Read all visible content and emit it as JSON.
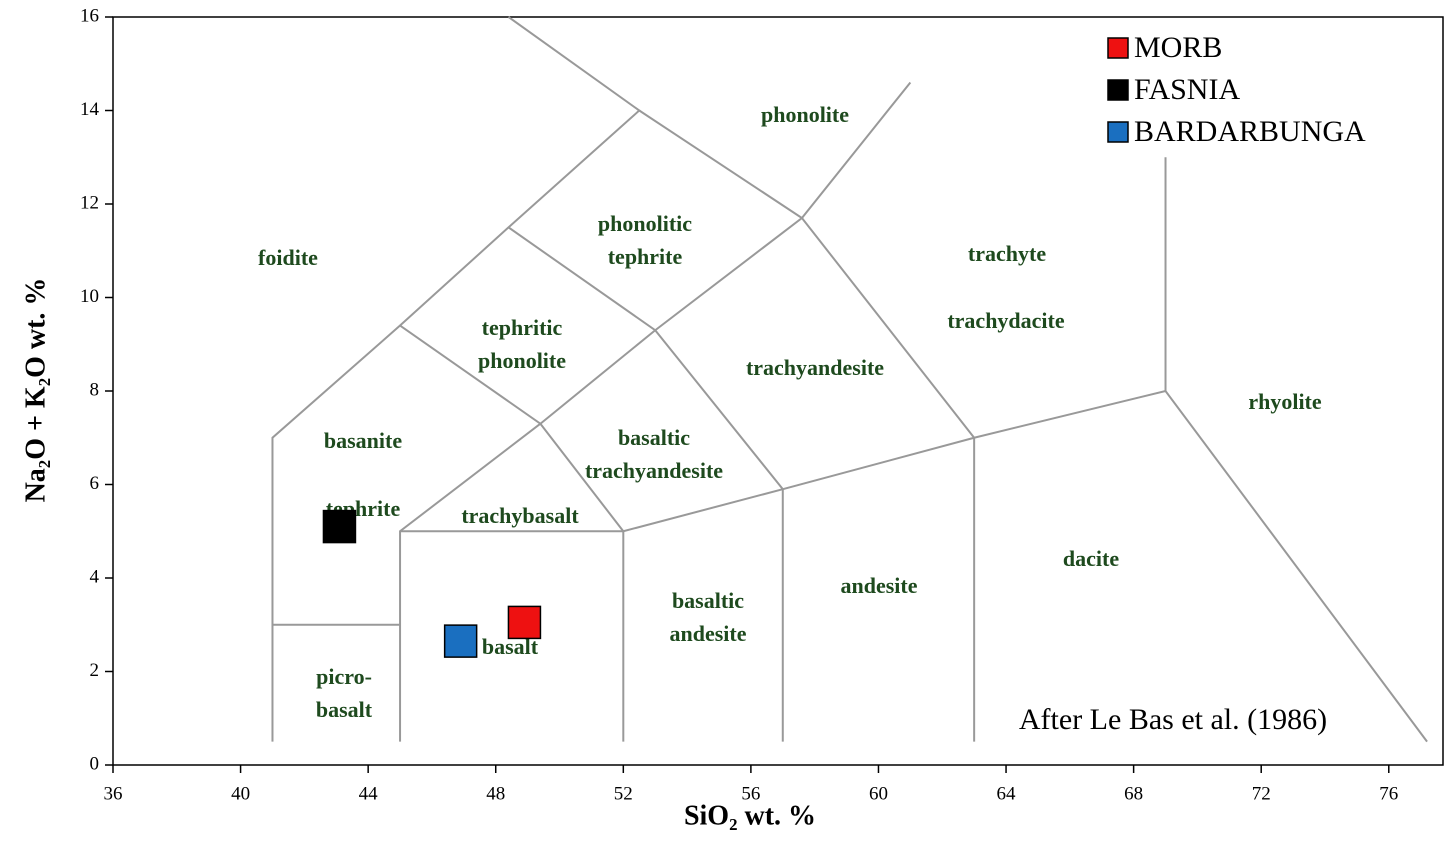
{
  "chart_data": {
    "type": "scatter",
    "xlabel": "SiO₂  wt. %",
    "ylabel": "Na₂O + K₂O  wt. %",
    "annotation": "After Le Bas et al. (1986)",
    "xlim": [
      36,
      77.7
    ],
    "ylim": [
      0,
      16
    ],
    "xticks": [
      36,
      40,
      44,
      48,
      52,
      56,
      60,
      64,
      68,
      72,
      76
    ],
    "yticks": [
      0,
      2,
      4,
      6,
      8,
      10,
      12,
      14,
      16
    ],
    "legend": "top-right",
    "series": [
      {
        "name": "MORB",
        "color": "#ee1111",
        "x": [
          48.9
        ],
        "values": [
          3.05
        ]
      },
      {
        "name": "FASNIA",
        "color": "#000000",
        "x": [
          43.1
        ],
        "values": [
          5.1
        ]
      },
      {
        "name": "BARDARBUNGA",
        "color": "#1a6fc0",
        "x": [
          46.9
        ],
        "values": [
          2.65
        ]
      }
    ],
    "boundaries": [
      {
        "x": [
          41,
          41,
          45,
          48.4,
          52.5,
          48.4
        ],
        "y": [
          0.5,
          7,
          9.4,
          11.5,
          14,
          16
        ]
      },
      {
        "x": [
          45,
          45,
          49.4,
          53,
          57.6,
          61
        ],
        "y": [
          0.5,
          5,
          7.3,
          9.3,
          11.7,
          14.6
        ]
      },
      {
        "x": [
          41,
          45
        ],
        "y": [
          3,
          3
        ]
      },
      {
        "x": [
          45,
          52,
          57,
          63,
          69,
          77.2
        ],
        "y": [
          5,
          5,
          5.9,
          7,
          8,
          0.5
        ]
      },
      {
        "x": [
          52,
          52
        ],
        "y": [
          0.5,
          5
        ]
      },
      {
        "x": [
          57,
          57
        ],
        "y": [
          0.5,
          5.9
        ]
      },
      {
        "x": [
          63,
          63
        ],
        "y": [
          0.5,
          7
        ]
      },
      {
        "x": [
          69,
          69
        ],
        "y": [
          8,
          13
        ]
      },
      {
        "x": [
          45,
          49.4,
          52
        ],
        "y": [
          9.4,
          7.3,
          5
        ]
      },
      {
        "x": [
          48.4,
          53,
          57
        ],
        "y": [
          11.5,
          9.3,
          5.9
        ]
      },
      {
        "x": [
          52.5,
          57.6,
          63
        ],
        "y": [
          14,
          11.7,
          7
        ]
      }
    ],
    "fields": [
      [
        "foidite"
      ],
      [
        "phonolite"
      ],
      [
        "phonolitic",
        "tephrite"
      ],
      [
        "tephritic",
        "phonolite"
      ],
      [
        "trachyte"
      ],
      [
        "trachydacite"
      ],
      [
        "trachyandesite"
      ],
      [
        "rhyolite"
      ],
      [
        "basanite"
      ],
      [
        "basaltic",
        "trachyandesite"
      ],
      [
        "tephrite"
      ],
      [
        "trachybasalt"
      ],
      [
        "basaltic",
        "andesite"
      ],
      [
        "andesite"
      ],
      [
        "dacite"
      ],
      [
        "basalt"
      ],
      [
        "picro-",
        "basalt"
      ]
    ]
  }
}
